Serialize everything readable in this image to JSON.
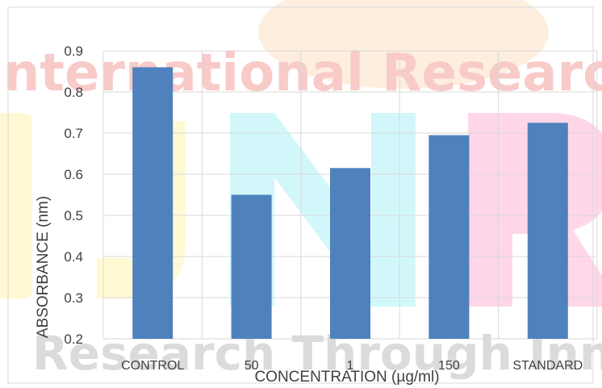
{
  "chart_data": {
    "type": "bar",
    "title": "",
    "xlabel": "CONCENTRATION (µg/ml)",
    "ylabel": "ABSORBANCE (nm)",
    "categories": [
      "CONTROL",
      "50",
      "1",
      "150",
      "STANDARD"
    ],
    "series": [
      {
        "values": [
          0.86,
          0.55,
          0.615,
          0.695,
          0.725
        ]
      }
    ],
    "ylim": [
      0.2,
      0.9
    ],
    "yticks": [
      "0.2",
      "0.3",
      "0.4",
      "0.5",
      "0.6",
      "0.7",
      "0.8",
      "0.9"
    ],
    "grid": true,
    "legend": "none",
    "colors": {
      "bar": "#4f81bd",
      "grid": "#d9d9d9",
      "text": "#404040",
      "watermark_red": "#e8453c",
      "watermark_cyan": "#5fe5f0",
      "watermark_pink": "#ff6fb0",
      "watermark_yellow": "#ffeb66",
      "watermark_orange": "#f39c3c"
    },
    "watermark": {
      "top_text": "International Research",
      "bottom_text": "Research Through Innovation",
      "letters": [
        "I",
        "J",
        "N",
        "R"
      ]
    }
  }
}
